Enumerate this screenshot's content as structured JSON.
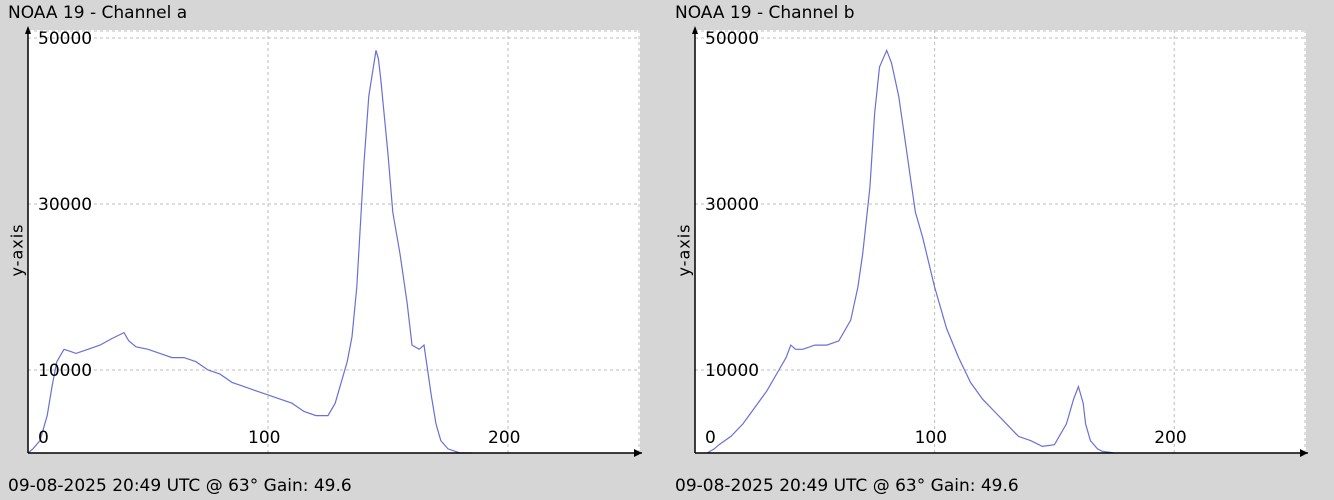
{
  "panels": [
    {
      "title": "NOAA 19 - Channel a",
      "ylabel": "y-axis",
      "footer": "09-08-2025 20:49 UTC @ 63° Gain: 49.6"
    },
    {
      "title": "NOAA 19 - Channel b",
      "ylabel": "y-axis",
      "footer": "09-08-2025 20:49 UTC @ 63° Gain: 49.6"
    }
  ],
  "chart_data": [
    {
      "type": "line",
      "title": "NOAA 19 - Channel a",
      "xlabel": "",
      "ylabel": "y-axis",
      "xlim": [
        0,
        255
      ],
      "ylim": [
        0,
        50000
      ],
      "xticks": [
        0,
        100,
        200
      ],
      "yticks": [
        10000,
        30000,
        50000
      ],
      "grid": true,
      "line_color": "#6a6fd6",
      "series": [
        {
          "x": [
            0,
            2,
            5,
            8,
            10,
            12,
            15,
            18,
            20,
            25,
            30,
            35,
            40,
            42,
            45,
            50,
            55,
            60,
            65,
            70,
            75,
            80,
            85,
            90,
            95,
            100,
            105,
            110,
            115,
            120,
            125,
            128,
            130,
            133,
            135,
            137,
            140,
            142,
            145,
            146,
            147,
            148,
            150,
            152,
            155,
            158,
            160,
            163,
            165,
            166,
            168,
            170,
            172,
            175,
            178,
            180,
            185
          ],
          "y": [
            0,
            500,
            1500,
            4500,
            8000,
            11000,
            12500,
            12200,
            12000,
            12500,
            13000,
            13800,
            14500,
            13500,
            12800,
            12500,
            12000,
            11500,
            11500,
            11000,
            10000,
            9500,
            8500,
            8000,
            7500,
            7000,
            6500,
            6000,
            5000,
            4500,
            4500,
            6000,
            8000,
            11000,
            14000,
            20000,
            35000,
            43000,
            48500,
            47500,
            45000,
            42000,
            36000,
            29000,
            24000,
            18000,
            13000,
            12500,
            13000,
            11000,
            7000,
            3500,
            1500,
            500,
            200,
            0,
            0
          ]
        }
      ]
    },
    {
      "type": "line",
      "title": "NOAA 19 - Channel b",
      "xlabel": "",
      "ylabel": "y-axis",
      "xlim": [
        0,
        255
      ],
      "ylim": [
        0,
        50000
      ],
      "xticks": [
        0,
        100,
        200
      ],
      "yticks": [
        10000,
        30000,
        50000
      ],
      "grid": true,
      "line_color": "#6a6fd6",
      "series": [
        {
          "x": [
            5,
            8,
            10,
            15,
            20,
            25,
            30,
            35,
            38,
            40,
            42,
            45,
            50,
            55,
            60,
            65,
            68,
            70,
            73,
            75,
            77,
            80,
            82,
            85,
            88,
            90,
            92,
            95,
            100,
            105,
            110,
            115,
            120,
            125,
            130,
            135,
            140,
            145,
            150,
            155,
            158,
            160,
            162,
            163,
            165,
            168,
            170,
            175
          ],
          "y": [
            0,
            500,
            1000,
            2000,
            3500,
            5500,
            7500,
            10000,
            11500,
            13000,
            12500,
            12500,
            13000,
            13000,
            13500,
            16000,
            20000,
            24000,
            32000,
            41000,
            46500,
            48500,
            47000,
            43000,
            37000,
            33000,
            29000,
            26000,
            20000,
            15000,
            11500,
            8500,
            6500,
            5000,
            3500,
            2000,
            1500,
            800,
            1000,
            3500,
            6500,
            8000,
            6000,
            3500,
            1500,
            500,
            200,
            0
          ]
        }
      ]
    }
  ]
}
